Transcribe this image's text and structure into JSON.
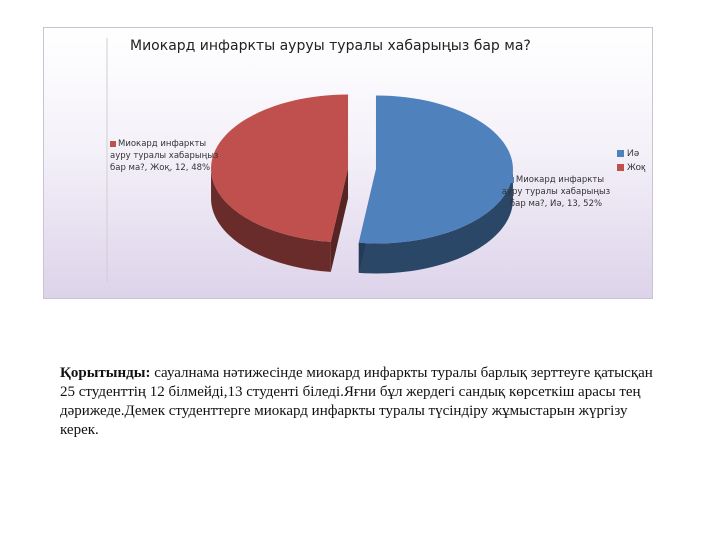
{
  "chart_data": {
    "type": "pie",
    "title": "Миокард инфаркты ауруы  туралы хабарыңыз бар ма?",
    "categories": [
      "Иә",
      "Жоқ"
    ],
    "values": [
      13,
      12
    ],
    "percents": [
      52,
      48
    ],
    "colors": {
      "Иә": "#4f81bd",
      "Жоқ": "#c0504d"
    },
    "legend_placement": "right",
    "data_labels": [
      "Миокард инфаркты ауру туралы хабарыңыз бар ма?, Иә, 13, 52%",
      "Миокард инфаркты ауру туралы хабарыңыз бар ма?, Жоқ, 12, 48%"
    ]
  },
  "caption": {
    "lead": "Қорытынды:",
    "text": " сауалнама нәтижесінде миокард инфаркты туралы барлық зерттеуге қатысқан 25 студенттің 12 білмейді,13 студенті біледі.Яғни бұл жердегі сандық көрсеткіш арасы тең дәрижеде.Демек студенттерге  миокард инфаркты туралы түсіндіру жұмыстарын жүргізу керек."
  }
}
